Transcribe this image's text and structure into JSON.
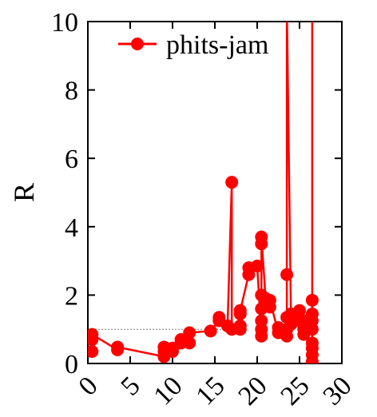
{
  "chart_data": {
    "type": "line",
    "title": "",
    "xlabel": "",
    "ylabel": "R",
    "xlim": [
      0,
      30
    ],
    "ylim": [
      0,
      10
    ],
    "xticks": [
      0,
      5,
      10,
      15,
      20,
      25,
      30
    ],
    "yticks": [
      0,
      2,
      4,
      6,
      8,
      10
    ],
    "grid": false,
    "legend": {
      "position": "top-left",
      "entries": [
        "phits-jam"
      ]
    },
    "reference_line": {
      "y": 1.0,
      "x_range": [
        0.5,
        16.5
      ],
      "style": "dotted"
    },
    "series": [
      {
        "name": "phits-jam",
        "color": "#ff0000",
        "marker": "circle",
        "points": [
          [
            0.5,
            0.35
          ],
          [
            0.5,
            0.7
          ],
          [
            0.5,
            0.85
          ],
          [
            3.5,
            0.4
          ],
          [
            3.5,
            0.48
          ],
          [
            9.0,
            0.2
          ],
          [
            9.0,
            0.35
          ],
          [
            9.0,
            0.48
          ],
          [
            10.0,
            0.35
          ],
          [
            10.0,
            0.45
          ],
          [
            11.0,
            0.6
          ],
          [
            11.0,
            0.7
          ],
          [
            12.0,
            0.6
          ],
          [
            12.0,
            0.9
          ],
          [
            14.5,
            0.95
          ],
          [
            15.5,
            1.25
          ],
          [
            15.5,
            1.35
          ],
          [
            16.5,
            1.1
          ],
          [
            17.0,
            5.3
          ],
          [
            17.0,
            1.0
          ],
          [
            18.0,
            1.0
          ],
          [
            18.0,
            1.1
          ],
          [
            18.0,
            1.45
          ],
          [
            18.0,
            1.55
          ],
          [
            19.0,
            2.6
          ],
          [
            19.0,
            2.8
          ],
          [
            20.0,
            2.85
          ],
          [
            20.5,
            0.8
          ],
          [
            20.5,
            1.0
          ],
          [
            20.5,
            1.25
          ],
          [
            20.5,
            1.6
          ],
          [
            20.5,
            2.0
          ],
          [
            20.5,
            3.5
          ],
          [
            20.5,
            3.7
          ],
          [
            21.0,
            1.9
          ],
          [
            21.5,
            1.65
          ],
          [
            21.5,
            1.85
          ],
          [
            22.5,
            0.9
          ],
          [
            22.5,
            1.05
          ],
          [
            23.5,
            0.8
          ],
          [
            23.5,
            1.0
          ],
          [
            23.5,
            1.35
          ],
          [
            23.5,
            2.6
          ],
          [
            23.5,
            10.5
          ],
          [
            24.0,
            1.15
          ],
          [
            24.0,
            1.45
          ],
          [
            25.0,
            1.55
          ],
          [
            25.0,
            1.25
          ],
          [
            25.5,
            0.85
          ],
          [
            25.5,
            1.0
          ],
          [
            25.5,
            1.25
          ],
          [
            26.5,
            0.05
          ],
          [
            26.5,
            0.25
          ],
          [
            26.5,
            0.45
          ],
          [
            26.5,
            0.6
          ],
          [
            26.5,
            1.0
          ],
          [
            26.5,
            1.25
          ],
          [
            26.5,
            1.45
          ],
          [
            26.5,
            1.85
          ],
          [
            26.5,
            10.5
          ]
        ]
      }
    ]
  }
}
